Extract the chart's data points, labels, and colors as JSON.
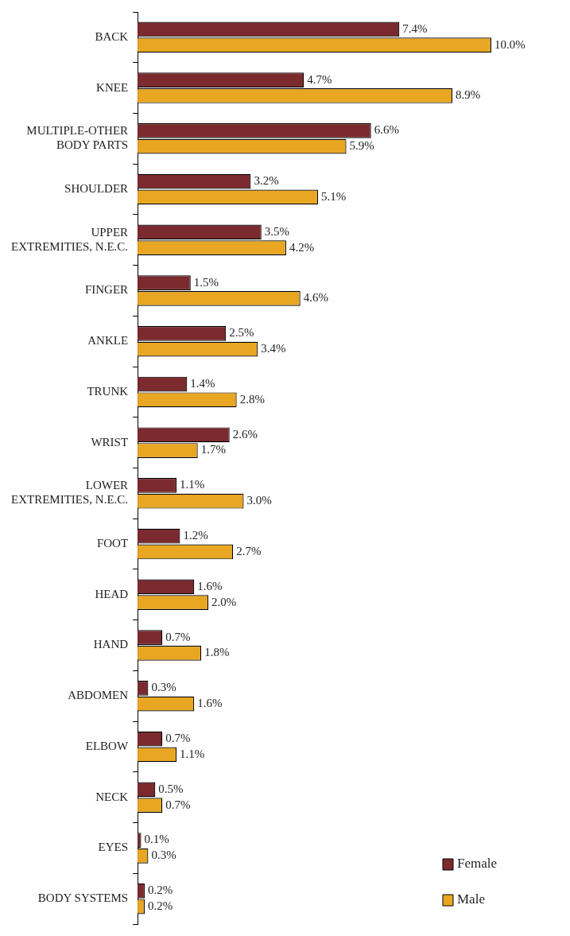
{
  "chart_data": {
    "type": "bar",
    "orientation": "horizontal",
    "legend": "bottom right",
    "categories": [
      "BACK",
      "KNEE",
      "MULTIPLE-OTHER BODY PARTS",
      "SHOULDER",
      "UPPER EXTREMITIES, N.E.C.",
      "FINGER",
      "ANKLE",
      "TRUNK",
      "WRIST",
      "LOWER EXTREMITIES, N.E.C.",
      "FOOT",
      "HEAD",
      "HAND",
      "ABDOMEN",
      "ELBOW",
      "NECK",
      "EYES",
      "BODY SYSTEMS"
    ],
    "series": [
      {
        "name": "Female",
        "color": "#7b2a2e",
        "values": [
          7.4,
          4.7,
          6.6,
          3.2,
          3.5,
          1.5,
          2.5,
          1.4,
          2.6,
          1.1,
          1.2,
          1.6,
          0.7,
          0.3,
          0.7,
          0.5,
          0.1,
          0.2
        ],
        "value_labels": [
          "7.4%",
          "4.7%",
          "6.6%",
          "3.2%",
          "3.5%",
          "1.5%",
          "2.5%",
          "1.4%",
          "2.6%",
          "1.1%",
          "1.2%",
          "1.6%",
          "0.7%",
          "0.3%",
          "0.7%",
          "0.5%",
          "0.1%",
          "0.2%"
        ]
      },
      {
        "name": "Male",
        "color": "#e8a623",
        "values": [
          10.0,
          8.9,
          5.9,
          5.1,
          4.2,
          4.6,
          3.4,
          2.8,
          1.7,
          3.0,
          2.7,
          2.0,
          1.8,
          1.6,
          1.1,
          0.7,
          0.3,
          0.2
        ],
        "value_labels": [
          "10.0%",
          "8.9%",
          "5.9%",
          "5.1%",
          "4.2%",
          "4.6%",
          "3.4%",
          "2.8%",
          "1.7%",
          "3.0%",
          "2.7%",
          "2.0%",
          "1.8%",
          "1.6%",
          "1.1%",
          "0.7%",
          "0.3%",
          "0.2%"
        ]
      }
    ]
  }
}
